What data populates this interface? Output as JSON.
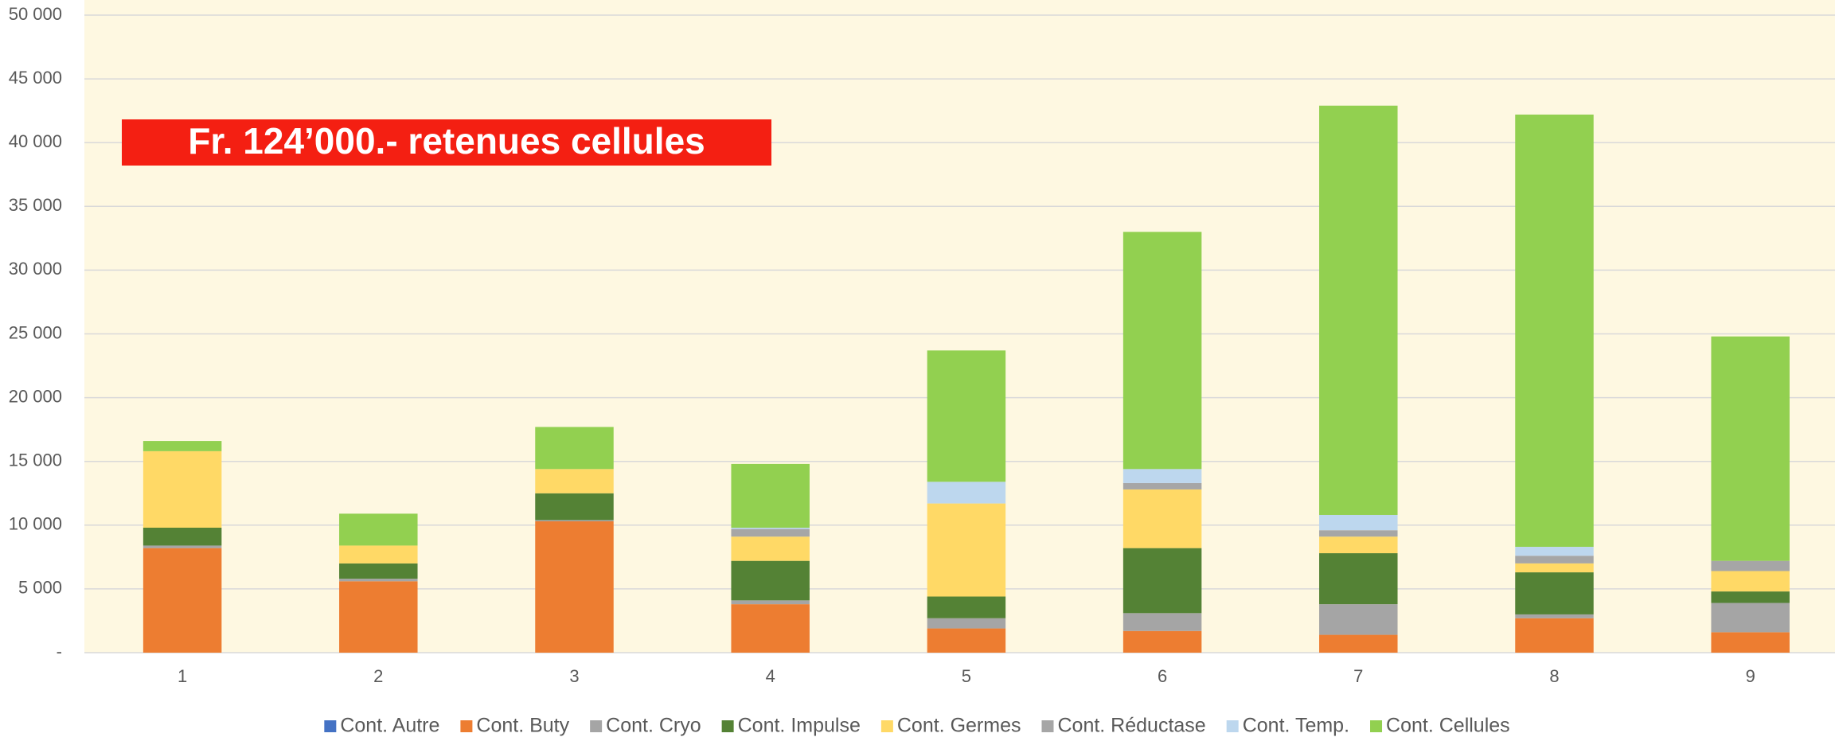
{
  "chart_data": {
    "type": "stacked_bar",
    "annotation": "Fr. 124’000.- retenues cellules",
    "categories": [
      "1",
      "2",
      "3",
      "4",
      "5",
      "6",
      "7",
      "8",
      "9"
    ],
    "series": [
      {
        "name": "Cont. Autre",
        "color": "#4472c4",
        "values": [
          0,
          0,
          0,
          0,
          0,
          0,
          0,
          0,
          0
        ]
      },
      {
        "name": "Cont. Buty",
        "color": "#ed7d31",
        "values": [
          8200,
          5600,
          10300,
          3800,
          1900,
          1700,
          1400,
          2700,
          1600
        ]
      },
      {
        "name": "Cont. Cryo",
        "color": "#a5a5a5",
        "values": [
          200,
          200,
          100,
          300,
          800,
          1400,
          2400,
          300,
          2300
        ]
      },
      {
        "name": "Cont. Impulse",
        "color": "#548235",
        "values": [
          1400,
          1200,
          2100,
          3100,
          1700,
          5100,
          4000,
          3300,
          900
        ]
      },
      {
        "name": "Cont. Germes",
        "color": "#ffd966",
        "values": [
          6000,
          1400,
          1900,
          1900,
          7300,
          4600,
          1300,
          700,
          1600
        ]
      },
      {
        "name": "Cont. Réductase",
        "color": "#a6a6a6",
        "values": [
          0,
          0,
          0,
          600,
          0,
          500,
          500,
          600,
          800
        ]
      },
      {
        "name": "Cont. Temp.",
        "color": "#bdd7ee",
        "values": [
          0,
          0,
          0,
          100,
          1700,
          1100,
          1200,
          700,
          0
        ]
      },
      {
        "name": "Cont. Cellules",
        "color": "#92d050",
        "values": [
          800,
          2500,
          3300,
          5000,
          10300,
          18600,
          32100,
          33900,
          17600
        ]
      }
    ],
    "ylim": [
      0,
      50000
    ],
    "yticks": [
      {
        "value": 0,
        "label": "-"
      },
      {
        "value": 5000,
        "label": "5 000"
      },
      {
        "value": 10000,
        "label": "10 000"
      },
      {
        "value": 15000,
        "label": "15 000"
      },
      {
        "value": 20000,
        "label": "20 000"
      },
      {
        "value": 25000,
        "label": "25 000"
      },
      {
        "value": 30000,
        "label": "30 000"
      },
      {
        "value": 35000,
        "label": "35 000"
      },
      {
        "value": 40000,
        "label": "40 000"
      },
      {
        "value": 45000,
        "label": "45 000"
      },
      {
        "value": 50000,
        "label": "50 000"
      }
    ],
    "grid": true
  }
}
